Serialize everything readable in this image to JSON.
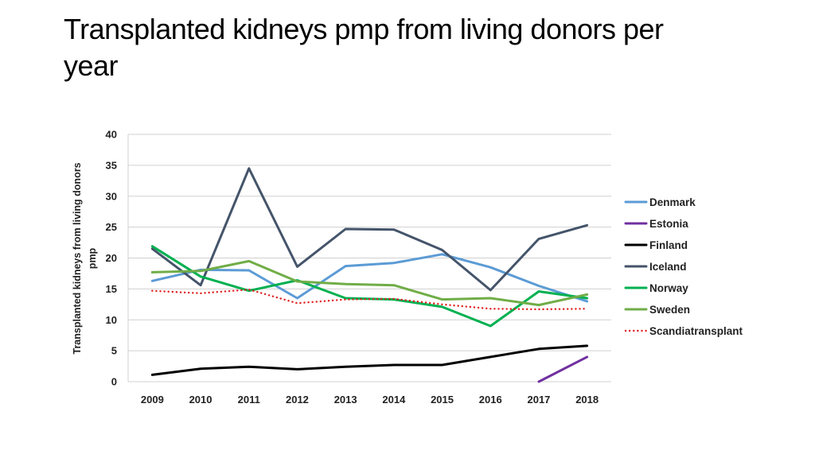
{
  "slide": {
    "title_line1": "Transplanted kidneys pmp from living donors per",
    "title_line2": "year"
  },
  "chart_data": {
    "type": "line",
    "title": "Transplanted kidneys pmp from living donors per year",
    "xlabel": "",
    "ylabel_line1": "Transplanted kidneys from living donors",
    "ylabel_line2": "pmp",
    "categories": [
      "2009",
      "2010",
      "2011",
      "2012",
      "2013",
      "2014",
      "2015",
      "2016",
      "2017",
      "2018"
    ],
    "ylim": [
      0,
      40
    ],
    "yticks": [
      "0",
      "5",
      "10",
      "15",
      "20",
      "25",
      "30",
      "35",
      "40"
    ],
    "grid": true,
    "legend_position": "right",
    "series": [
      {
        "name": "Denmark",
        "color": "#5b9bd5",
        "dash": "solid",
        "values": [
          16.3,
          18.1,
          18.0,
          13.5,
          18.7,
          19.2,
          20.6,
          18.5,
          15.5,
          13.0
        ]
      },
      {
        "name": "Estonia",
        "color": "#7030a0",
        "dash": "solid",
        "values": [
          null,
          null,
          null,
          null,
          null,
          null,
          null,
          null,
          0.0,
          4.0
        ]
      },
      {
        "name": "Finland",
        "color": "#000000",
        "dash": "solid",
        "values": [
          1.1,
          2.1,
          2.4,
          2.0,
          2.4,
          2.7,
          2.7,
          4.0,
          5.3,
          5.8
        ]
      },
      {
        "name": "Iceland",
        "color": "#44546a",
        "dash": "solid",
        "values": [
          21.5,
          15.6,
          34.5,
          18.6,
          24.7,
          24.6,
          21.3,
          14.8,
          23.1,
          25.3
        ]
      },
      {
        "name": "Norway",
        "color": "#00b050",
        "dash": "solid",
        "values": [
          21.9,
          17.0,
          14.7,
          16.4,
          13.5,
          13.3,
          12.1,
          9.0,
          14.6,
          13.5
        ]
      },
      {
        "name": "Sweden",
        "color": "#70ad47",
        "dash": "solid",
        "values": [
          17.7,
          17.9,
          19.5,
          16.2,
          15.8,
          15.6,
          13.3,
          13.5,
          12.4,
          14.1
        ]
      },
      {
        "name": "Scandiatransplant",
        "color": "#e02020",
        "dash": "dotted",
        "values": [
          14.7,
          14.3,
          14.9,
          12.7,
          13.3,
          13.4,
          12.5,
          11.8,
          11.7,
          11.8
        ]
      }
    ]
  }
}
